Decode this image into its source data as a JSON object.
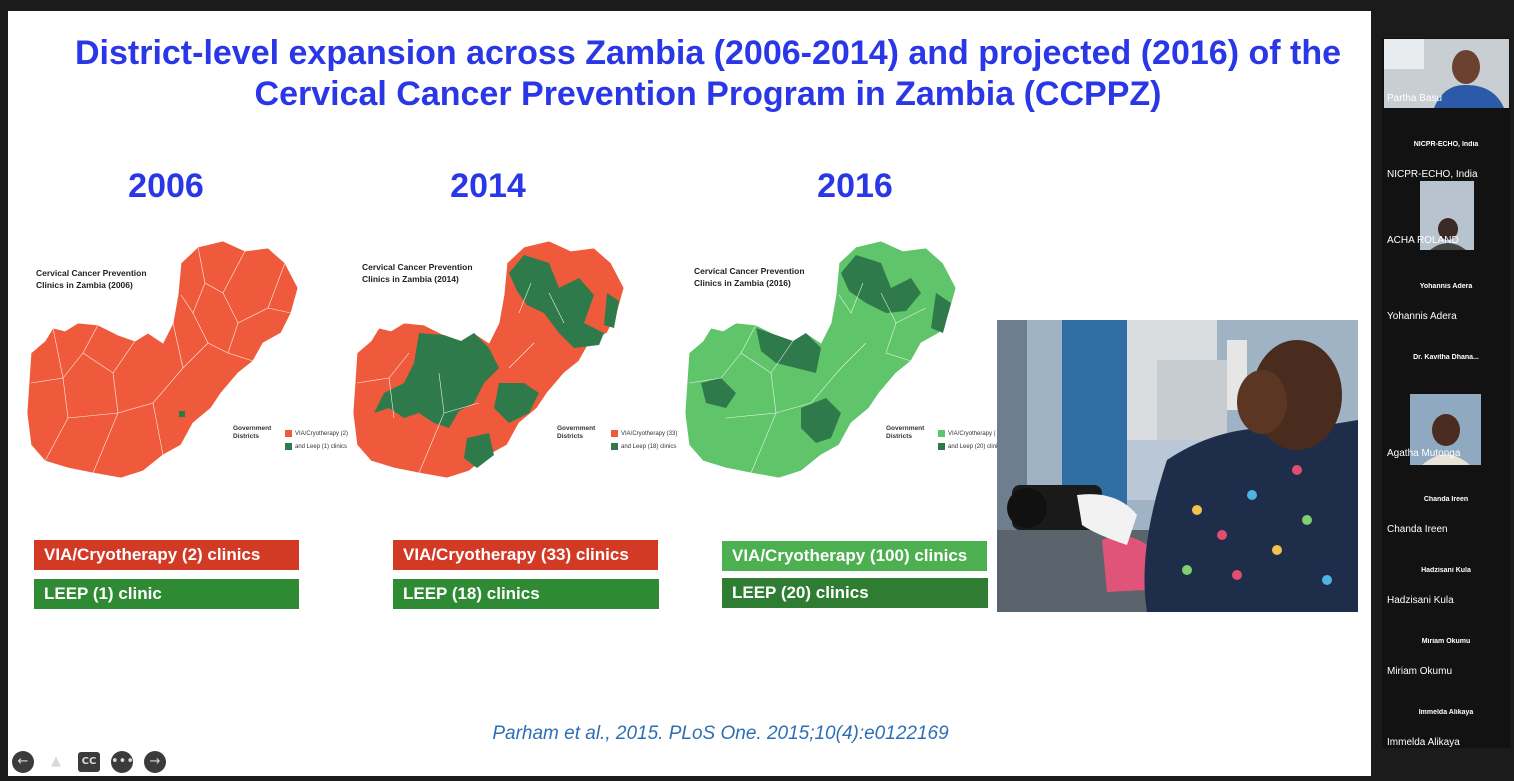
{
  "slide": {
    "title": "District-level expansion across Zambia (2006-2014) and projected (2016) of the Cervical Cancer Prevention Program in Zambia (CCPPZ)",
    "panels": [
      {
        "year": "2006",
        "map_title": "Cervical Cancer Prevention Clinics in Zambia (2006)",
        "legend_title": "Government Districts",
        "legend_via": "VIA/Cryotherapy (2)",
        "legend_leep": "and Leep (1) clinics",
        "via_label": "VIA/Cryotherapy (2) clinics",
        "leep_label": "LEEP (1) clinic"
      },
      {
        "year": "2014",
        "map_title": "Cervical Cancer Prevention Clinics in Zambia (2014)",
        "legend_title": "Government Districts",
        "legend_via": "VIA/Cryotherapy (33)",
        "legend_leep": "and Leep (18) clinics",
        "via_label": "VIA/Cryotherapy (33) clinics",
        "leep_label": "LEEP (18) clinics"
      },
      {
        "year": "2016",
        "map_title": "Cervical Cancer Prevention Clinics in Zambia (2016)",
        "legend_title": "Government Districts",
        "legend_via": "VIA/Cryotherapy (",
        "legend_leep": "and Leep (20) clinic",
        "via_label": "VIA/Cryotherapy (100) clinics",
        "leep_label": "LEEP (20) clinics"
      }
    ],
    "citation": "Parham et al., 2015. PLoS One. 2015;10(4):e0122169"
  },
  "colors": {
    "title_blue": "#2a37e6",
    "citation_blue": "#2d6fb7",
    "via_red_badge": "#d23a26",
    "leep_green_badge": "#2e8b34",
    "via_green_badge": "#4caf50",
    "leep_dark_green_badge": "#2e7d32",
    "map_red": "#ef5a3c",
    "map_dark_green": "#2f7a4a",
    "map_light_green": "#5fc46a"
  },
  "controls": {
    "prev_icon": "arrow-left-icon",
    "pointer_icon": "pointer-icon",
    "cc_label": "CC",
    "more_icon": "more-icon",
    "next_icon": "arrow-right-icon"
  },
  "participants": [
    {
      "small": "",
      "name": "Partha Basu"
    },
    {
      "small": "NICPR-ECHO, India",
      "name": "NICPR-ECHO, India"
    },
    {
      "small": "",
      "name": "ACHA ROLAND"
    },
    {
      "small": "Yohannis Adera",
      "name": "Yohannis Adera"
    },
    {
      "small": "Dr. Kavitha Dhana...",
      "name": ""
    },
    {
      "small": "",
      "name": "Agatha Mutonga"
    },
    {
      "small": "Chanda Ireen",
      "name": "Chanda Ireen"
    },
    {
      "small": "Hadzisani Kula",
      "name": "Hadzisani Kula"
    },
    {
      "small": "Miriam Okumu",
      "name": "Miriam Okumu"
    },
    {
      "small": "Immelda Alikaya",
      "name": "Immelda Alikaya"
    }
  ]
}
